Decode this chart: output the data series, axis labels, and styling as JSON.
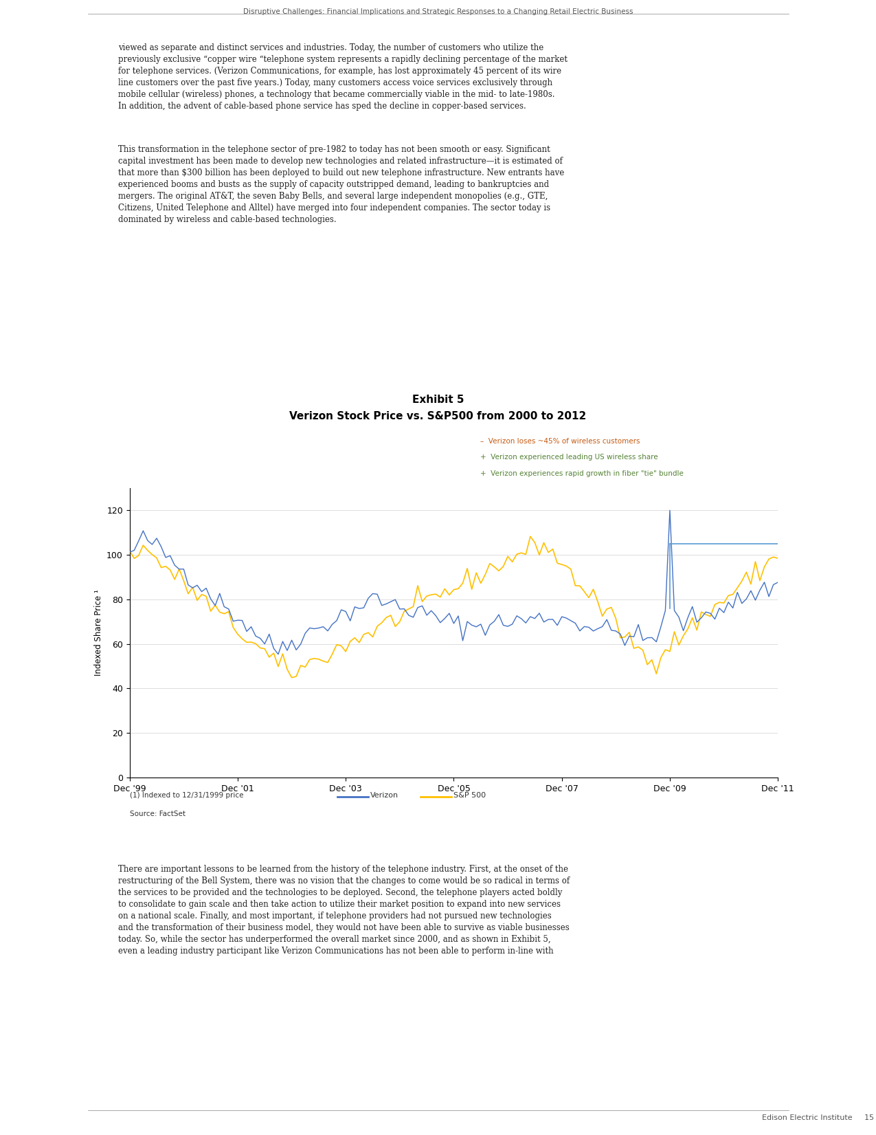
{
  "title_line1": "Exhibit 5",
  "title_line2": "Verizon Stock Price vs. S&P500 from 2000 to 2012",
  "ylabel": "Indexed Share Price ¹",
  "ylim": [
    0,
    130
  ],
  "yticks": [
    0,
    20,
    40,
    60,
    80,
    100,
    120
  ],
  "xtick_labels": [
    "Dec '99",
    "Dec '01",
    "Dec '03",
    "Dec '05",
    "Dec '07",
    "Dec '09",
    "Dec '11"
  ],
  "verizon_color": "#4472C4",
  "sp500_color": "#FFC000",
  "annotation_color_dash": "#C55A11",
  "annotation_color_plus": "#548235",
  "annotation1": "Verizon loses ~45% of wireless customers",
  "annotation2": "Verizon experienced leading US wireless share",
  "annotation3": "Verizon experiences rapid growth in fiber \"tie\" bundle",
  "footnote": "(1) Indexed to 12/31/1999 price",
  "source": "Source: FactSet",
  "legend_verizon": "Verizon",
  "legend_sp500": "S&P 500",
  "header_text": "Disruptive Challenges: Financial Implications and Strategic Responses to a Changing Retail Electric Business",
  "footer_text": "Edison Electric Institute     15",
  "top_paragraph": "viewed as separate and distinct services and industries. Today, the number of customers who utilize the\npreviously exclusive “copper wire “telephone system represents a rapidly declining percentage of the market\nfor telephone services. (Verizon Communications, for example, has lost approximately 45 percent of its wire\nline customers over the past five years.) Today, many customers access voice services exclusively through\nmobile cellular (wireless) phones, a technology that became commercially viable in the mid- to late-1980s.\nIn addition, the advent of cable-based phone service has sped the decline in copper-based services.",
  "mid_paragraph": "This transformation in the telephone sector of pre-1982 to today has not been smooth or easy. Significant\ncapital investment has been made to develop new technologies and related infrastructure—it is estimated of\nthat more than $300 billion has been deployed to build out new telephone infrastructure. New entrants have\nexperienced booms and busts as the supply of capacity outstripped demand, leading to bankruptcies and\nmergers. The original AT&T, the seven Baby Bells, and several large independent monopolies (e.g., GTE,\nCitizens, United Telephone and Alltel) have merged into four independent companies. The sector today is\ndominated by wireless and cable-based technologies.",
  "bottom_paragraph": "There are important lessons to be learned from the history of the telephone industry. First, at the onset of the\nrestructuring of the Bell System, there was no vision that the changes to come would be so radical in terms of\nthe services to be provided and the technologies to be deployed. Second, the telephone players acted boldly\nto consolidate to gain scale and then take action to utilize their market position to expand into new services\non a national scale. Finally, and most important, if telephone providers had not pursued new technologies\nand the transformation of their business model, they would not have been able to survive as viable businesses\ntoday. So, while the sector has underperformed the overall market since 2000, and as shown in Exhibit 5,\neven a leading industry participant like Verizon Communications has not been able to perform in-line with",
  "background_color": "#FFFFFF"
}
